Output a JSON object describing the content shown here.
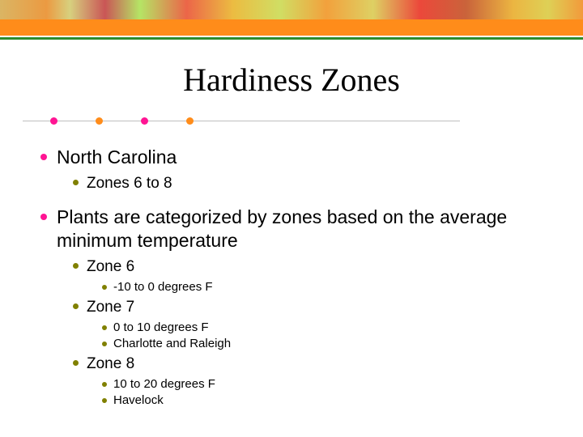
{
  "colors": {
    "bullet_hot_pink": "#ff1493",
    "bullet_olive": "#808000",
    "accent_line": "#bfbfbf",
    "accent_dots": [
      "#ff1493",
      "#ff8c1a",
      "#ff1493",
      "#ff8c1a"
    ],
    "accent_dot_left": [
      62,
      118,
      174,
      230
    ]
  },
  "title": "Hardiness Zones",
  "bullets": [
    {
      "text": "North Carolina",
      "children": [
        {
          "text": "Zones 6 to 8"
        }
      ]
    },
    {
      "text": "Plants are categorized by zones based on the average minimum temperature",
      "children": [
        {
          "text": "Zone 6",
          "children": [
            {
              "text": "-10 to 0 degrees F"
            }
          ]
        },
        {
          "text": "Zone 7",
          "children": [
            {
              "text": "0 to 10 degrees F"
            },
            {
              "text": "Charlotte and Raleigh"
            }
          ]
        },
        {
          "text": "Zone 8",
          "children": [
            {
              "text": "10 to 20 degrees F"
            },
            {
              "text": "Havelock"
            }
          ]
        }
      ]
    }
  ]
}
